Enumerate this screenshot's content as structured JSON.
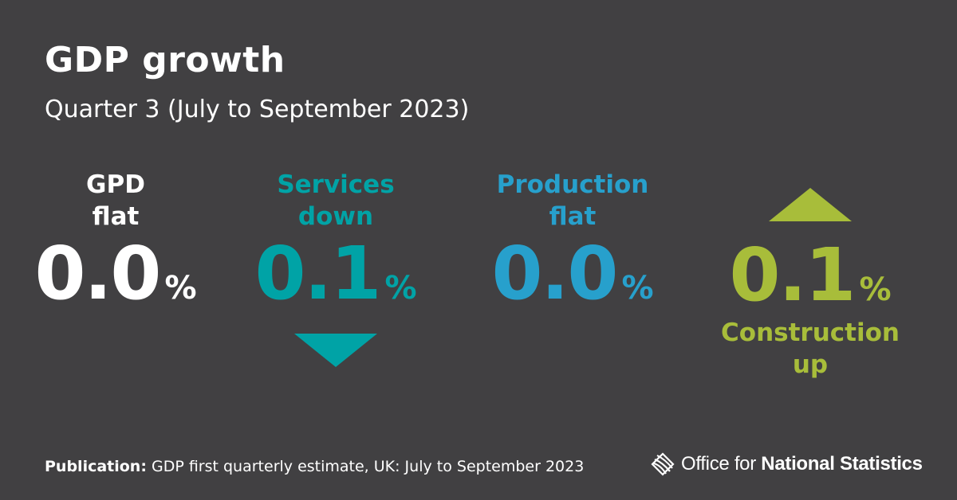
{
  "header": {
    "title": "GDP growth",
    "subtitle": "Quarter 3 (July to September 2023)"
  },
  "stats": [
    {
      "label_line1": "GPD",
      "label_line2": "flat",
      "value": "0.0",
      "unit": "%",
      "direction": "flat",
      "color": "#ffffff"
    },
    {
      "label_line1": "Services",
      "label_line2": "down",
      "value": "0.1",
      "unit": "%",
      "direction": "down",
      "color": "#00a3a6"
    },
    {
      "label_line1": "Production",
      "label_line2": "flat",
      "value": "0.0",
      "unit": "%",
      "direction": "flat",
      "color": "#27a0cc"
    },
    {
      "label_line1": "Construction",
      "label_line2": "up",
      "value": "0.1",
      "unit": "%",
      "direction": "up",
      "color": "#a8bd3a"
    }
  ],
  "footer": {
    "publication_label": "Publication:",
    "publication_text": " GDP first quarterly estimate, UK: July to September 2023"
  },
  "logo": {
    "icon": "ons-logo-icon",
    "text_regular": "Office for ",
    "text_bold": "National Statistics"
  },
  "colors": {
    "background": "#414042",
    "services": "#00a3a6",
    "production": "#27a0cc",
    "construction": "#a8bd3a"
  }
}
